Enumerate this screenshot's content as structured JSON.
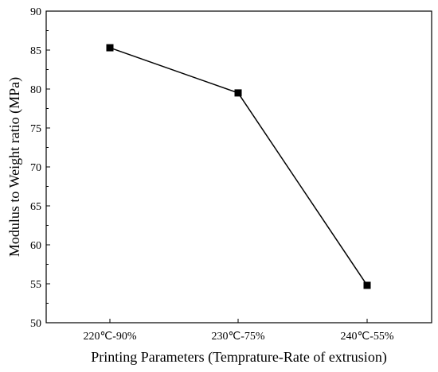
{
  "chart_data": {
    "type": "line",
    "xlabel": "Printing Parameters (Temprature-Rate of extrusion)",
    "ylabel": "Modulus to Weight ratio (MPa)",
    "categories": [
      "220℃-90%",
      "230℃-75%",
      "240℃-55%"
    ],
    "series": [
      {
        "values": [
          85.3,
          79.5,
          54.8
        ],
        "color": "#000000",
        "marker": "square"
      }
    ],
    "ylim": [
      50,
      90
    ],
    "yticks": [
      50,
      55,
      60,
      65,
      70,
      75,
      80,
      85,
      90
    ],
    "grid": false,
    "legend": "none"
  }
}
